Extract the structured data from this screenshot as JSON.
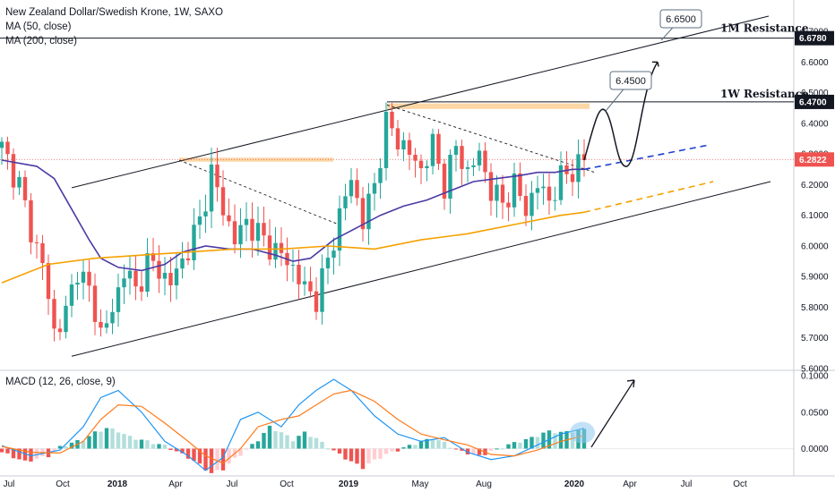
{
  "header": {
    "symbol_line": "New Zealand Dollar/Swedish Krone, 1W, SAXO",
    "ma1": "MA (50, close)",
    "ma2": "MA (200, close)",
    "macd": "MACD (12, 26, close, 9)"
  },
  "colors": {
    "up": "#26a69a",
    "down": "#ef5350",
    "ma50": "#4b3aa5",
    "ma200": "#f5a100",
    "macd_line": "#2196f3",
    "signal_line": "#ff7a1a",
    "zone": "#fcd7a6",
    "price_tag": "#ef5350"
  },
  "annotations": {
    "res_1m_label": "1M Resistance",
    "res_1w_label": "1W Resistance",
    "target_1": "6.4500",
    "target_2": "6.6500"
  },
  "chart_data": [
    {
      "type": "candlestick",
      "title": "New Zealand Dollar/Swedish Krone, 1W, SAXO",
      "x_ticks": [
        "Jul",
        "Oct",
        "2018",
        "Apr",
        "Jul",
        "Oct",
        "2019",
        "May",
        "Aug",
        "2020",
        "Apr",
        "Jul",
        "Oct"
      ],
      "x_ticks_bold": [
        "2018",
        "2019",
        "2020"
      ],
      "y_ticks": [
        "5.6000",
        "5.7000",
        "5.8000",
        "5.9000",
        "6.0000",
        "6.1000",
        "6.2000",
        "6.3000",
        "6.4000",
        "6.5000",
        "6.6000",
        "6.7000"
      ],
      "ylim": [
        5.6,
        6.75
      ],
      "price_labels": [
        {
          "value": 6.678,
          "label": "6.6780"
        },
        {
          "value": 6.47,
          "label": "6.4700"
        },
        {
          "value": 6.2822,
          "label": "6.2822",
          "role": "last"
        }
      ],
      "resistance_levels": [
        {
          "name": "1M Resistance",
          "value": 6.678
        },
        {
          "name": "1W Resistance",
          "value": 6.47
        }
      ],
      "projected_targets": [
        6.45,
        6.65
      ],
      "waypoints": [
        [
          0,
          6.32
        ],
        [
          3,
          6.2
        ],
        [
          5,
          6.05
        ],
        [
          7,
          5.94
        ],
        [
          9,
          5.72
        ],
        [
          11,
          5.78
        ],
        [
          13,
          5.93
        ],
        [
          15,
          5.85
        ],
        [
          17,
          5.72
        ],
        [
          19,
          5.78
        ],
        [
          21,
          5.93
        ],
        [
          23,
          5.85
        ],
        [
          25,
          5.95
        ],
        [
          27,
          5.92
        ],
        [
          29,
          5.88
        ],
        [
          31,
          5.95
        ],
        [
          34,
          6.08
        ],
        [
          36,
          6.24
        ],
        [
          38,
          6.12
        ],
        [
          40,
          6.02
        ],
        [
          42,
          6.08
        ],
        [
          44,
          6.04
        ],
        [
          46,
          6.0
        ],
        [
          48,
          5.97
        ],
        [
          50,
          5.93
        ],
        [
          52,
          5.86
        ],
        [
          54,
          5.83
        ],
        [
          56,
          5.95
        ],
        [
          58,
          6.1
        ],
        [
          60,
          6.22
        ],
        [
          62,
          6.08
        ],
        [
          64,
          6.2
        ],
        [
          66,
          6.4
        ],
        [
          68,
          6.35
        ],
        [
          70,
          6.3
        ],
        [
          72,
          6.25
        ],
        [
          74,
          6.33
        ],
        [
          76,
          6.2
        ],
        [
          78,
          6.32
        ],
        [
          80,
          6.24
        ],
        [
          82,
          6.3
        ],
        [
          84,
          6.18
        ],
        [
          86,
          6.14
        ],
        [
          88,
          6.2
        ],
        [
          90,
          6.12
        ],
        [
          92,
          6.2
        ],
        [
          94,
          6.15
        ],
        [
          96,
          6.22
        ],
        [
          98,
          6.25
        ],
        [
          100,
          6.28
        ]
      ],
      "ma50": [
        [
          0,
          6.28
        ],
        [
          6,
          6.26
        ],
        [
          9,
          6.22
        ],
        [
          12,
          6.12
        ],
        [
          15,
          6.02
        ],
        [
          17,
          5.96
        ],
        [
          20,
          5.93
        ],
        [
          24,
          5.92
        ],
        [
          28,
          5.94
        ],
        [
          31,
          5.98
        ],
        [
          35,
          6.0
        ],
        [
          39,
          5.99
        ],
        [
          43,
          5.99
        ],
        [
          47,
          5.97
        ],
        [
          50,
          5.95
        ],
        [
          53,
          5.96
        ],
        [
          57,
          6.02
        ],
        [
          61,
          6.06
        ],
        [
          65,
          6.1
        ],
        [
          69,
          6.13
        ],
        [
          73,
          6.15
        ],
        [
          77,
          6.18
        ],
        [
          81,
          6.21
        ],
        [
          85,
          6.22
        ],
        [
          89,
          6.23
        ],
        [
          92,
          6.24
        ],
        [
          95,
          6.24
        ],
        [
          98,
          6.25
        ],
        [
          100,
          6.25
        ]
      ],
      "ma200": [
        [
          0,
          5.88
        ],
        [
          8,
          5.94
        ],
        [
          16,
          5.96
        ],
        [
          24,
          5.97
        ],
        [
          32,
          5.98
        ],
        [
          40,
          5.99
        ],
        [
          48,
          5.99
        ],
        [
          56,
          6.0
        ],
        [
          64,
          5.99
        ],
        [
          72,
          6.02
        ],
        [
          80,
          6.04
        ],
        [
          88,
          6.07
        ],
        [
          96,
          6.1
        ],
        [
          100,
          6.11
        ]
      ]
    },
    {
      "type": "bar",
      "title": "MACD (12, 26, close, 9)",
      "y_ticks": [
        "0.0000",
        "0.0500",
        "0.1000"
      ],
      "ylim": [
        -0.035,
        0.105
      ],
      "series": [
        {
          "name": "histogram",
          "points": [
            [
              0,
              -0.005
            ],
            [
              4,
              -0.018
            ],
            [
              8,
              -0.01
            ],
            [
              10,
              0.002
            ],
            [
              12,
              0.008
            ],
            [
              14,
              0.012
            ],
            [
              16,
              0.022
            ],
            [
              18,
              0.028
            ],
            [
              20,
              0.024
            ],
            [
              22,
              0.016
            ],
            [
              24,
              0.012
            ],
            [
              26,
              0.008
            ],
            [
              28,
              0.004
            ],
            [
              30,
              -0.004
            ],
            [
              32,
              -0.012
            ],
            [
              34,
              -0.022
            ],
            [
              36,
              -0.034
            ],
            [
              38,
              -0.028
            ],
            [
              40,
              -0.014
            ],
            [
              42,
              -0.002
            ],
            [
              44,
              0.012
            ],
            [
              46,
              0.03
            ],
            [
              48,
              0.022
            ],
            [
              50,
              0.012
            ],
            [
              52,
              0.022
            ],
            [
              54,
              0.014
            ],
            [
              56,
              0.002
            ],
            [
              58,
              -0.008
            ],
            [
              60,
              -0.018
            ],
            [
              62,
              -0.026
            ],
            [
              64,
              -0.016
            ],
            [
              66,
              -0.008
            ],
            [
              68,
              -0.002
            ],
            [
              70,
              0.004
            ],
            [
              72,
              0.01
            ],
            [
              74,
              0.014
            ],
            [
              76,
              0.008
            ],
            [
              78,
              -0.002
            ],
            [
              80,
              -0.006
            ],
            [
              82,
              -0.01
            ],
            [
              84,
              -0.004
            ],
            [
              86,
              0.002
            ],
            [
              88,
              0.008
            ],
            [
              90,
              0.012
            ],
            [
              92,
              0.018
            ],
            [
              94,
              0.024
            ],
            [
              96,
              0.022
            ],
            [
              100,
              0.026
            ]
          ]
        },
        {
          "name": "macd",
          "points": [
            [
              0,
              0.004
            ],
            [
              5,
              -0.01
            ],
            [
              10,
              -0.002
            ],
            [
              14,
              0.03
            ],
            [
              17,
              0.07
            ],
            [
              20,
              0.08
            ],
            [
              24,
              0.05
            ],
            [
              28,
              0.01
            ],
            [
              32,
              -0.01
            ],
            [
              35,
              -0.03
            ],
            [
              38,
              -0.012
            ],
            [
              41,
              0.04
            ],
            [
              44,
              0.05
            ],
            [
              48,
              0.03
            ],
            [
              51,
              0.06
            ],
            [
              54,
              0.08
            ],
            [
              57,
              0.095
            ],
            [
              60,
              0.08
            ],
            [
              64,
              0.045
            ],
            [
              68,
              0.02
            ],
            [
              72,
              0.01
            ],
            [
              76,
              0.015
            ],
            [
              80,
              -0.005
            ],
            [
              84,
              -0.015
            ],
            [
              88,
              -0.01
            ],
            [
              92,
              0.005
            ],
            [
              96,
              0.02
            ],
            [
              100,
              0.028
            ]
          ]
        },
        {
          "name": "signal",
          "points": [
            [
              0,
              0.003
            ],
            [
              5,
              -0.005
            ],
            [
              10,
              -0.006
            ],
            [
              14,
              0.01
            ],
            [
              17,
              0.04
            ],
            [
              20,
              0.06
            ],
            [
              24,
              0.058
            ],
            [
              28,
              0.035
            ],
            [
              32,
              0.01
            ],
            [
              35,
              -0.01
            ],
            [
              38,
              -0.02
            ],
            [
              41,
              0.0
            ],
            [
              44,
              0.03
            ],
            [
              48,
              0.04
            ],
            [
              51,
              0.045
            ],
            [
              54,
              0.06
            ],
            [
              57,
              0.075
            ],
            [
              60,
              0.08
            ],
            [
              64,
              0.065
            ],
            [
              68,
              0.04
            ],
            [
              72,
              0.02
            ],
            [
              76,
              0.012
            ],
            [
              80,
              0.005
            ],
            [
              84,
              -0.008
            ],
            [
              88,
              -0.01
            ],
            [
              92,
              -0.002
            ],
            [
              96,
              0.01
            ],
            [
              100,
              0.018
            ]
          ]
        }
      ]
    }
  ]
}
